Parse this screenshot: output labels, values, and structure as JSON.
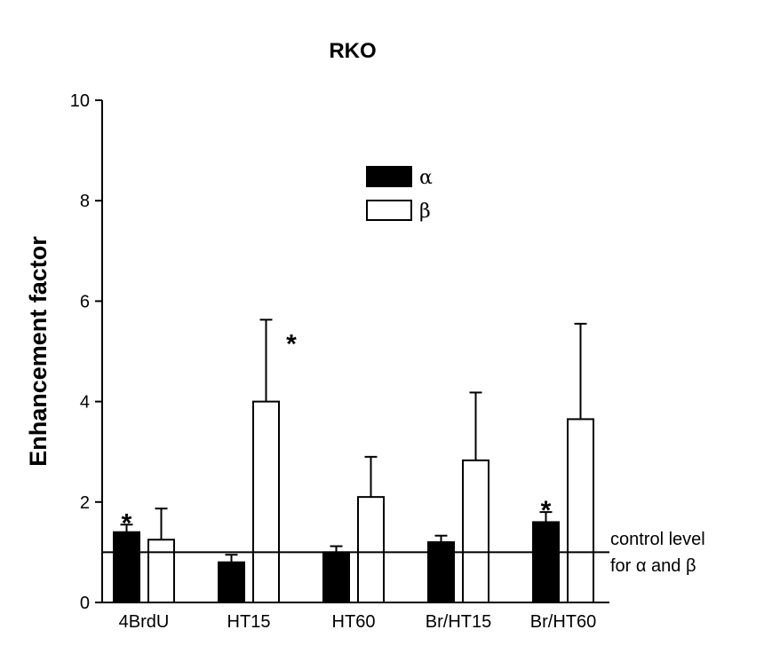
{
  "chart_data": {
    "type": "bar",
    "title": "RKO",
    "ylabel": "Enhancement factor",
    "xlabel": "",
    "ylim": [
      0,
      10
    ],
    "yticks": [
      "0",
      "2",
      "4",
      "6",
      "8",
      "10"
    ],
    "categories": [
      "4BrdU",
      "HT15",
      "HT60",
      "Br/HT15",
      "Br/HT60"
    ],
    "series": [
      {
        "name": "α",
        "fill": "#000000",
        "values": [
          1.4,
          0.8,
          1.0,
          1.2,
          1.6
        ],
        "error_upper": [
          1.55,
          0.95,
          1.12,
          1.33,
          1.8
        ],
        "significant": [
          true,
          false,
          false,
          false,
          true
        ]
      },
      {
        "name": "β",
        "fill": "#ffffff",
        "values": [
          1.25,
          4.0,
          2.1,
          2.83,
          3.65
        ],
        "error_upper": [
          1.87,
          5.63,
          2.9,
          4.18,
          5.55
        ],
        "significant": [
          false,
          true,
          false,
          false,
          false
        ]
      }
    ],
    "reference_line": {
      "value": 1.0,
      "label_lines": [
        "control level",
        "for α and β"
      ]
    },
    "significance_marker": "*",
    "legend_position": "top-center",
    "grid": false
  }
}
